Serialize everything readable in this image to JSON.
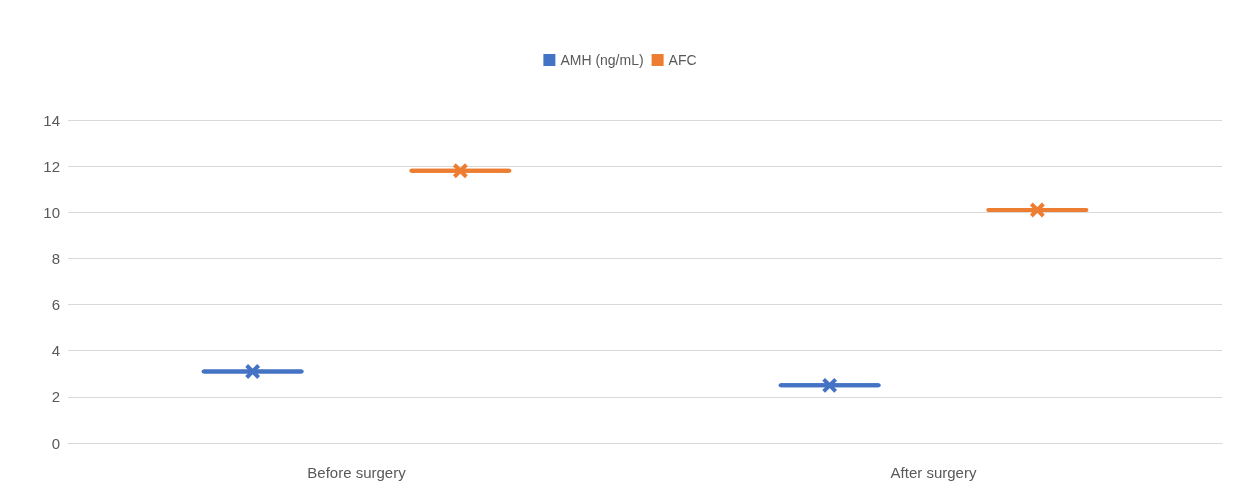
{
  "chart_data": {
    "type": "box",
    "categories": [
      "Before surgery",
      "After surgery"
    ],
    "series": [
      {
        "name": "AMH (ng/mL)",
        "color": "#4472c4",
        "boxes": [
          {
            "low": 3.1,
            "q1": 3.1,
            "median": 3.1,
            "q3": 3.1,
            "high": 3.1,
            "mean": 3.1
          },
          {
            "low": 2.5,
            "q1": 2.5,
            "median": 2.5,
            "q3": 2.5,
            "high": 2.5,
            "mean": 2.5
          }
        ]
      },
      {
        "name": "AFC",
        "color": "#ed7d31",
        "boxes": [
          {
            "low": 11.8,
            "q1": 11.8,
            "median": 11.8,
            "q3": 11.8,
            "high": 11.8,
            "mean": 11.8
          },
          {
            "low": 10.1,
            "q1": 10.1,
            "median": 10.1,
            "q3": 10.1,
            "high": 10.1,
            "mean": 10.1
          }
        ]
      }
    ],
    "ylim": [
      0,
      14
    ],
    "yticks": [
      0,
      2,
      4,
      6,
      8,
      10,
      12,
      14
    ],
    "grid": "y",
    "legend": "top",
    "marker": "cross"
  }
}
